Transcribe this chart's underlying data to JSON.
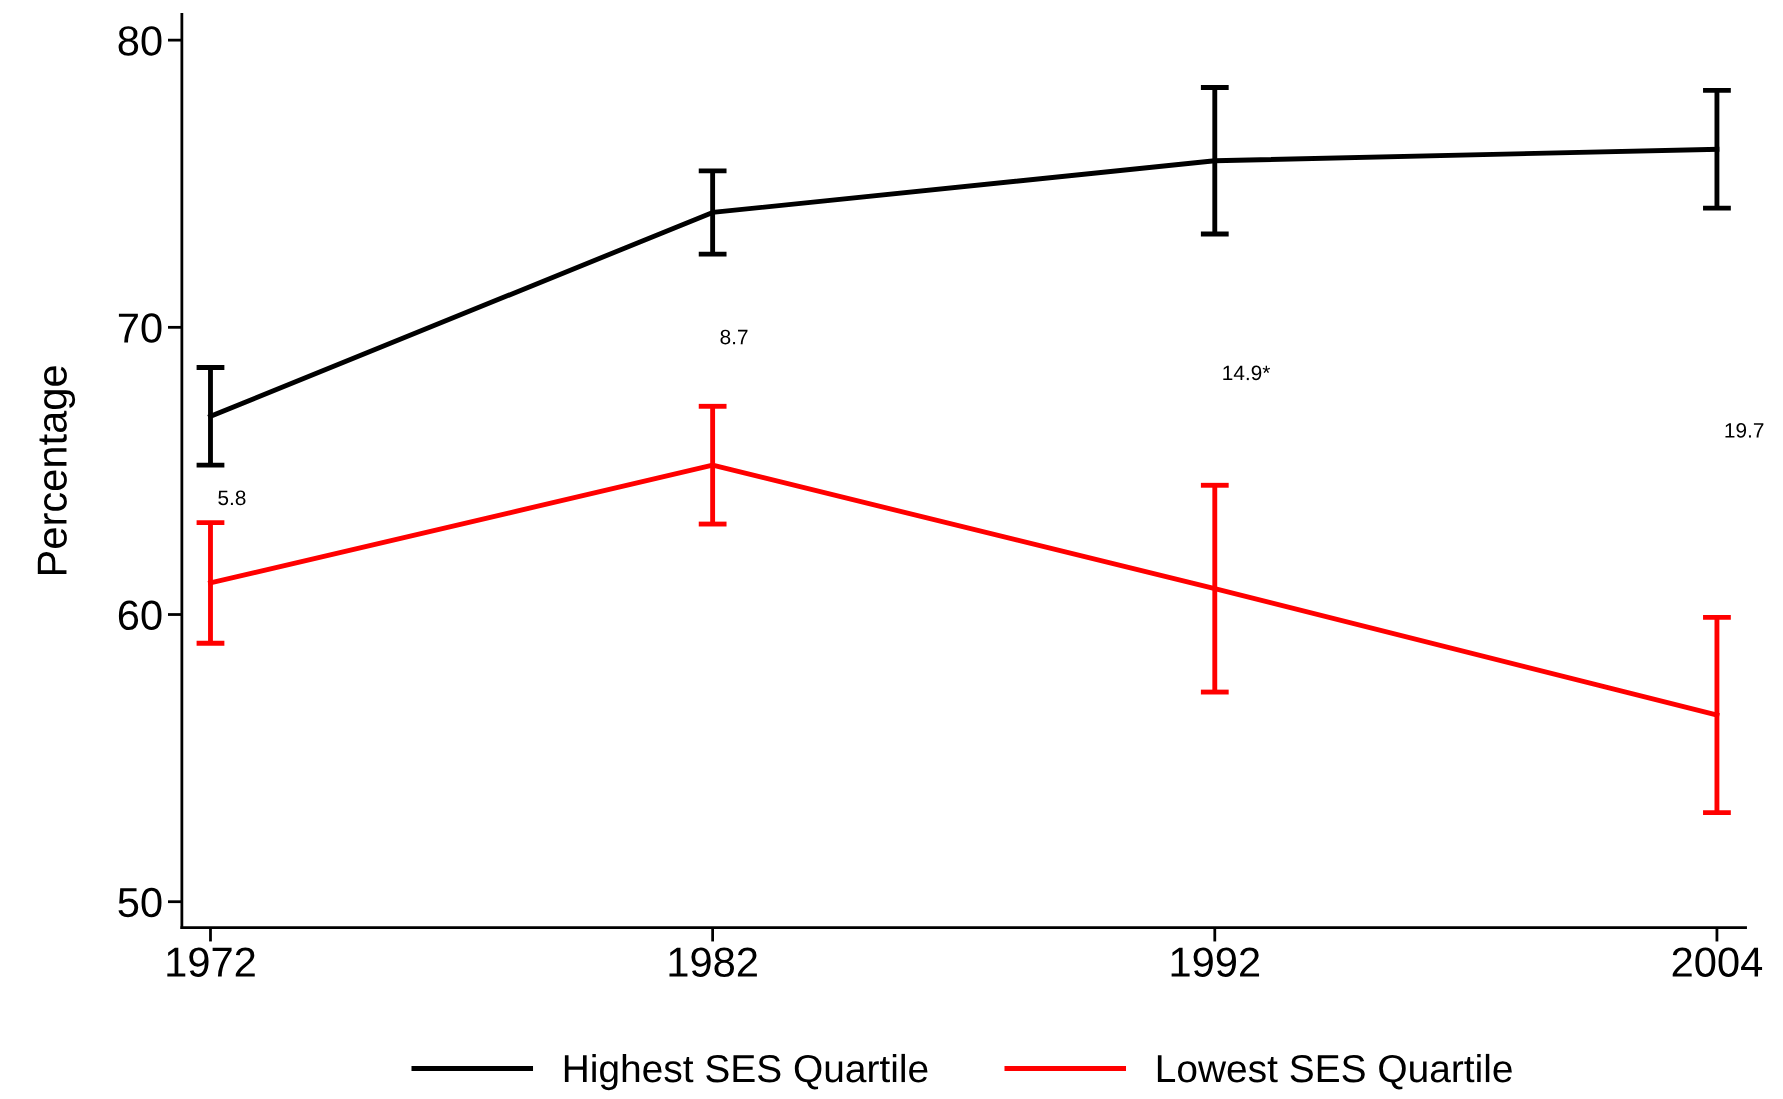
{
  "chart_data": {
    "type": "line",
    "ylabel": "Percentage",
    "categories": [
      "1972",
      "1982",
      "1992",
      "2004"
    ],
    "series": [
      {
        "name": "Highest SES Quartile",
        "color": "#000000",
        "values": [
          66.9,
          74.0,
          75.8,
          76.2
        ],
        "errors": [
          1.7,
          1.45,
          2.55,
          2.05
        ]
      },
      {
        "name": "Lowest SES Quartile",
        "color": "#ff0000",
        "values": [
          61.1,
          65.2,
          60.9,
          56.5
        ],
        "errors": [
          2.1,
          2.05,
          3.6,
          3.4
        ]
      }
    ],
    "ylim": [
      49.1,
      80.9
    ],
    "yticks": [
      50,
      60,
      70,
      80
    ],
    "grid": false,
    "legend": "bottom",
    "marker": "none",
    "line_style": "solid",
    "annotations": [
      "5.8",
      "8.7",
      "14.9*",
      "19.7"
    ]
  }
}
